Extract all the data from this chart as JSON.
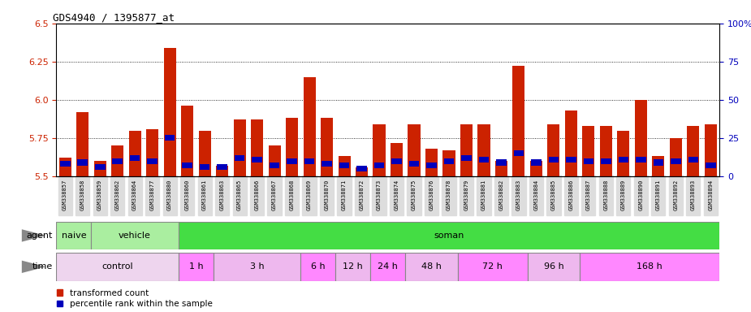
{
  "title": "GDS4940 / 1395877_at",
  "samples": [
    "GSM338857",
    "GSM338858",
    "GSM338859",
    "GSM338862",
    "GSM338864",
    "GSM338877",
    "GSM338880",
    "GSM338860",
    "GSM338861",
    "GSM338863",
    "GSM338865",
    "GSM338866",
    "GSM338867",
    "GSM338868",
    "GSM338869",
    "GSM338870",
    "GSM338871",
    "GSM338872",
    "GSM338873",
    "GSM338874",
    "GSM338875",
    "GSM338876",
    "GSM338878",
    "GSM338879",
    "GSM338881",
    "GSM338882",
    "GSM338883",
    "GSM338884",
    "GSM338885",
    "GSM338886",
    "GSM338887",
    "GSM338888",
    "GSM338889",
    "GSM338890",
    "GSM338891",
    "GSM338892",
    "GSM338893",
    "GSM338894"
  ],
  "red_values": [
    5.62,
    5.92,
    5.6,
    5.7,
    5.8,
    5.81,
    6.34,
    5.96,
    5.8,
    5.57,
    5.87,
    5.87,
    5.7,
    5.88,
    6.15,
    5.88,
    5.63,
    5.56,
    5.84,
    5.72,
    5.84,
    5.68,
    5.67,
    5.84,
    5.84,
    5.6,
    6.22,
    5.6,
    5.84,
    5.93,
    5.83,
    5.83,
    5.8,
    6.0,
    5.63,
    5.75,
    5.83,
    5.84
  ],
  "blue_values": [
    5.58,
    5.59,
    5.56,
    5.6,
    5.62,
    5.6,
    5.75,
    5.57,
    5.56,
    5.56,
    5.62,
    5.61,
    5.57,
    5.6,
    5.6,
    5.58,
    5.57,
    5.55,
    5.57,
    5.6,
    5.58,
    5.57,
    5.6,
    5.62,
    5.61,
    5.59,
    5.65,
    5.59,
    5.61,
    5.61,
    5.6,
    5.6,
    5.61,
    5.61,
    5.59,
    5.6,
    5.61,
    5.57
  ],
  "ylim_left": [
    5.5,
    6.5
  ],
  "ylim_right": [
    0,
    100
  ],
  "yticks_left": [
    5.5,
    5.75,
    6.0,
    6.25,
    6.5
  ],
  "yticks_right": [
    0,
    25,
    50,
    75,
    100
  ],
  "bar_color_red": "#CC2200",
  "bar_color_blue": "#0000BB",
  "bar_width": 0.7,
  "agent_groups": [
    {
      "label": "naive",
      "start": 0,
      "end": 2,
      "color": "#AAEEA0"
    },
    {
      "label": "vehicle",
      "start": 2,
      "end": 7,
      "color": "#AAEEA0"
    },
    {
      "label": "soman",
      "start": 7,
      "end": 38,
      "color": "#44DD44"
    }
  ],
  "time_groups": [
    {
      "label": "control",
      "start": 0,
      "end": 7,
      "color": "#EED5EE"
    },
    {
      "label": "1 h",
      "start": 7,
      "end": 9,
      "color": "#FF88FF"
    },
    {
      "label": "3 h",
      "start": 9,
      "end": 14,
      "color": "#EEB8EE"
    },
    {
      "label": "6 h",
      "start": 14,
      "end": 16,
      "color": "#FF88FF"
    },
    {
      "label": "12 h",
      "start": 16,
      "end": 18,
      "color": "#EEB8EE"
    },
    {
      "label": "24 h",
      "start": 18,
      "end": 20,
      "color": "#FF88FF"
    },
    {
      "label": "48 h",
      "start": 20,
      "end": 23,
      "color": "#EEB8EE"
    },
    {
      "label": "72 h",
      "start": 23,
      "end": 27,
      "color": "#FF88FF"
    },
    {
      "label": "96 h",
      "start": 27,
      "end": 30,
      "color": "#EEB8EE"
    },
    {
      "label": "168 h",
      "start": 30,
      "end": 38,
      "color": "#FF88FF"
    }
  ]
}
